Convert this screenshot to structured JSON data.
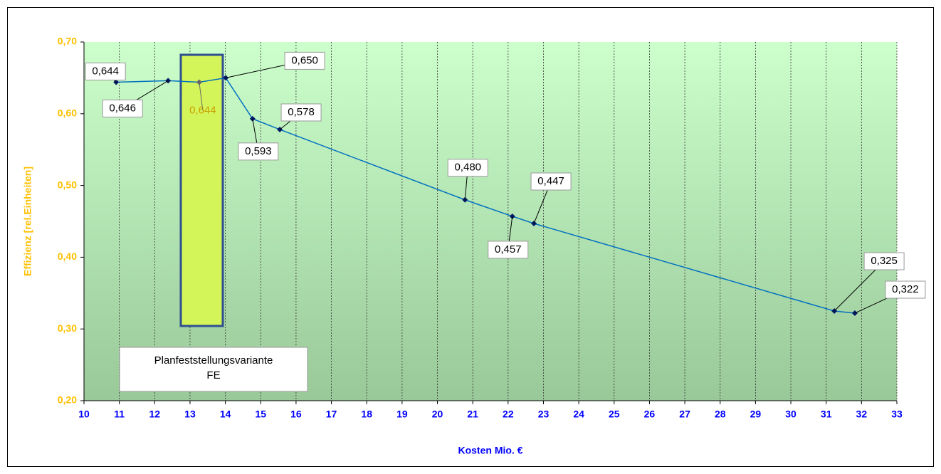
{
  "chart_data": {
    "type": "line",
    "x_label": "Kosten Mio. €",
    "y_label": "Effizienz [rel.Einheiten]",
    "annotation": [
      "Planfeststellungsvariante",
      "FE"
    ],
    "series": [
      {
        "color": "#0070c0",
        "x": [
          10.91,
          12.38,
          13.26,
          14.01,
          14.77,
          15.54,
          20.78,
          22.12,
          22.73,
          31.23,
          31.81
        ],
        "values": [
          0.644,
          0.646,
          0.644,
          0.65,
          0.593,
          0.578,
          0.48,
          0.457,
          0.447,
          0.325,
          0.322
        ],
        "value_labels": [
          "0,644",
          "0,646",
          "0,644",
          "0,650",
          "0,593",
          "0,578",
          "0,480",
          "0,457",
          "0,447",
          "0,325",
          "0,322"
        ]
      }
    ],
    "xlim": [
      10,
      33
    ],
    "xticks": [
      10,
      11,
      12,
      13,
      14,
      15,
      16,
      17,
      18,
      19,
      20,
      21,
      22,
      23,
      24,
      25,
      26,
      27,
      28,
      29,
      30,
      31,
      32,
      33
    ],
    "ylim": [
      0.2,
      0.7
    ],
    "yticks": [
      {
        "value": 0.2,
        "label": "0,20"
      },
      {
        "value": 0.3,
        "label": "0,30"
      },
      {
        "value": 0.4,
        "label": "0,40"
      },
      {
        "value": 0.5,
        "label": "0,50"
      },
      {
        "value": 0.6,
        "label": "0,60"
      },
      {
        "value": 0.7,
        "label": "0,70"
      }
    ],
    "grid": "x"
  }
}
